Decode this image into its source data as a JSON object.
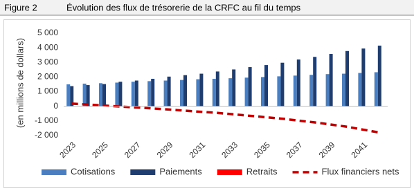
{
  "header": {
    "figure": "Figure 2",
    "title": "Évolution des flux de trésorerie de la CRFC au fil du temps"
  },
  "chart_data": {
    "type": "bar",
    "ylabel": "(en millions de dollars)",
    "categories": [
      "2023",
      null,
      "2025",
      null,
      "2027",
      null,
      "2029",
      null,
      "2031",
      null,
      "2033",
      null,
      "2035",
      null,
      "2037",
      null,
      "2039",
      null,
      "2041",
      null
    ],
    "series": [
      {
        "name": "Cotisations",
        "color": "#4a7ebf",
        "values": [
          1500,
          1550,
          1580,
          1620,
          1680,
          1720,
          1760,
          1800,
          1850,
          1880,
          1920,
          1960,
          2000,
          2050,
          2100,
          2150,
          2200,
          2230,
          2280,
          2330
        ]
      },
      {
        "name": "Paiements",
        "color": "#1f3d6e",
        "values": [
          1380,
          1450,
          1520,
          1680,
          1760,
          1880,
          2030,
          2130,
          2230,
          2380,
          2520,
          2680,
          2820,
          2980,
          3200,
          3380,
          3580,
          3780,
          3950,
          4150
        ]
      },
      {
        "name": "Retraits",
        "color": "#ff0000",
        "values": [
          0,
          0,
          0,
          0,
          0,
          0,
          0,
          0,
          0,
          0,
          0,
          0,
          0,
          0,
          0,
          0,
          0,
          0,
          0,
          0
        ]
      },
      {
        "name": "Flux financiers nets",
        "color": "#c00000",
        "type": "line",
        "values": [
          180,
          120,
          50,
          -20,
          -80,
          -150,
          -220,
          -300,
          -380,
          -450,
          -550,
          -650,
          -750,
          -850,
          -980,
          -1100,
          -1250,
          -1400,
          -1600,
          -1800
        ]
      }
    ],
    "ylim": [
      -2000,
      5000
    ],
    "yticks": [
      {
        "value": -2000,
        "label": "-2 000"
      },
      {
        "value": -1000,
        "label": "-1 000"
      },
      0,
      {
        "value": 1000,
        "label": "1 000"
      },
      {
        "value": 2000,
        "label": "2 000"
      },
      {
        "value": 3000,
        "label": "3 000"
      },
      {
        "value": 4000,
        "label": "4 000"
      },
      {
        "value": 5000,
        "label": "5 000"
      }
    ],
    "grid": false
  }
}
